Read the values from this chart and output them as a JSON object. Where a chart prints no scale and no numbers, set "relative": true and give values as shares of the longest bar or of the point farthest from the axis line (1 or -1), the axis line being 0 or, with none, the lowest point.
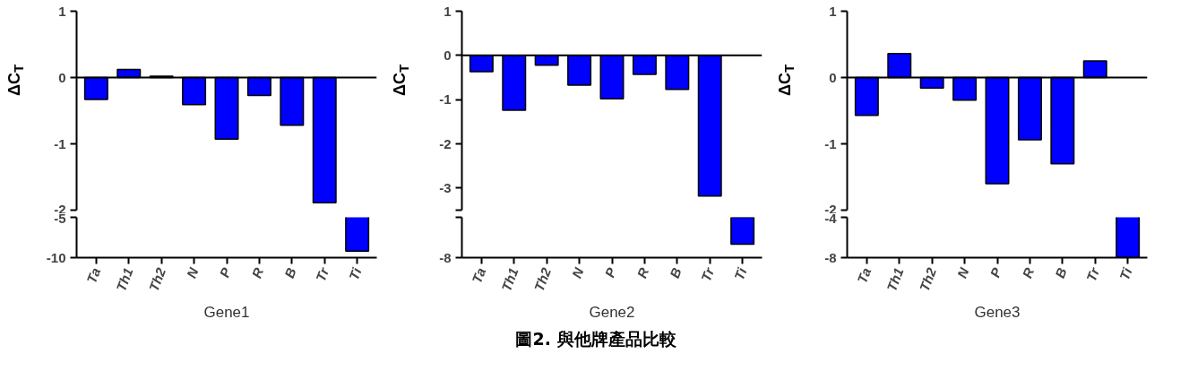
{
  "chart_data": [
    {
      "type": "bar",
      "ylabel": "ΔC$_{T}$",
      "categories": [
        null,
        null,
        null,
        null,
        null,
        null,
        null,
        null,
        null
      ],
      "values": [
        -0.33,
        0.12,
        0.02,
        -0.41,
        -0.93,
        -0.27,
        -0.72,
        -1.89,
        null
      ],
      "color": "#0000ff",
      "ylim": [
        -2,
        1
      ],
      "yticks": [
        1,
        0,
        -1,
        -2
      ],
      "tick_labels": "y",
      "annotations": [
        "圖2. 與他牌產品比較"
      ]
    },
    {
      "type": "bar",
      "ylabel": "ΔC$_{T}$",
      "categories": [
        null,
        null,
        null,
        null,
        null,
        null,
        null,
        null,
        null
      ],
      "values": [
        -0.37,
        -1.24,
        -0.22,
        -0.67,
        -0.98,
        -0.43,
        -0.77,
        -3.18,
        null
      ],
      "color": "#0000ff",
      "ylim": [
        -3.5,
        1
      ],
      "yticks": [
        1,
        0,
        -1,
        -2,
        -3,
        {
          "value": -3.5,
          "label": null
        }
      ],
      "tick_labels": "y"
    },
    {
      "type": "bar",
      "ylabel": "ΔC$_{T}$",
      "categories": [
        null,
        null,
        null,
        null,
        null,
        null,
        null,
        null,
        null
      ],
      "values": [
        -0.57,
        0.36,
        -0.16,
        -0.34,
        -1.6,
        -0.94,
        -1.3,
        0.25,
        null
      ],
      "color": "#0000ff",
      "ylim": [
        -2,
        1
      ],
      "yticks": [
        1,
        0,
        -1,
        -2
      ],
      "tick_labels": "y"
    },
    {
      "type": "bar",
      "xlabel": "Gene1",
      "categories": [
        "Ta",
        "Th1",
        "Th2",
        "N",
        "P",
        "R",
        "B",
        "Tr",
        "Ti"
      ],
      "values": [
        null,
        null,
        null,
        null,
        null,
        null,
        null,
        null,
        -9.2
      ],
      "color": "#0000ff",
      "ylim": [
        -10,
        -5
      ],
      "yticks": [
        -5,
        -10
      ]
    },
    {
      "type": "bar",
      "xlabel": "Gene2",
      "categories": [
        "Ta",
        "Th1",
        "Th2",
        "N",
        "P",
        "R",
        "B",
        "Tr",
        "Ti"
      ],
      "values": [
        null,
        null,
        null,
        null,
        null,
        null,
        null,
        null,
        -1
      ],
      "color": "#0000ff",
      "relative": true,
      "annotations": [
        "-8"
      ]
    },
    {
      "type": "bar",
      "xlabel": "Gene3",
      "categories": [
        "Ta",
        "Th1",
        "Th2",
        "N",
        "P",
        "R",
        "B",
        "Tr",
        "Ti"
      ],
      "values": [
        null,
        null,
        null,
        null,
        null,
        null,
        null,
        null,
        -8
      ],
      "color": "#0000ff",
      "ylim": [
        -8,
        -4
      ],
      "yticks": [
        -4,
        -8
      ]
    }
  ]
}
